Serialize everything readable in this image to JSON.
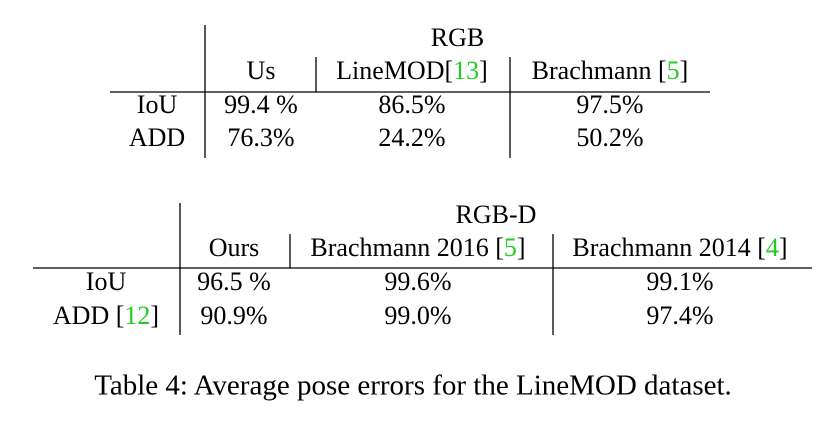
{
  "tables": [
    {
      "group": "RGB",
      "columns": [
        {
          "text": "Us"
        },
        {
          "text": "LineMOD[",
          "cite": "13",
          "end": "]"
        },
        {
          "text": "Brachmann [",
          "cite": "5",
          "end": "]"
        }
      ],
      "rows": [
        {
          "label": {
            "text": "IoU"
          },
          "cells": [
            "99.4 %",
            "86.5%",
            "97.5%"
          ]
        },
        {
          "label": {
            "text": "ADD"
          },
          "cells": [
            "76.3%",
            "24.2%",
            "50.2%"
          ]
        }
      ]
    },
    {
      "group": "RGB-D",
      "columns": [
        {
          "text": "Ours"
        },
        {
          "text": "Brachmann 2016 [",
          "cite": "5",
          "end": "]"
        },
        {
          "text": "Brachmann 2014 [",
          "cite": "4",
          "end": "]"
        }
      ],
      "rows": [
        {
          "label": {
            "text": "IoU"
          },
          "cells": [
            "96.5 %",
            "99.6%",
            "99.1%"
          ]
        },
        {
          "label": {
            "text": "ADD [",
            "cite": "12",
            "end": "]"
          },
          "cells": [
            "90.9%",
            "99.0%",
            "97.4%"
          ]
        }
      ]
    }
  ],
  "caption": "Table 4: Average pose errors for the LineMOD dataset."
}
